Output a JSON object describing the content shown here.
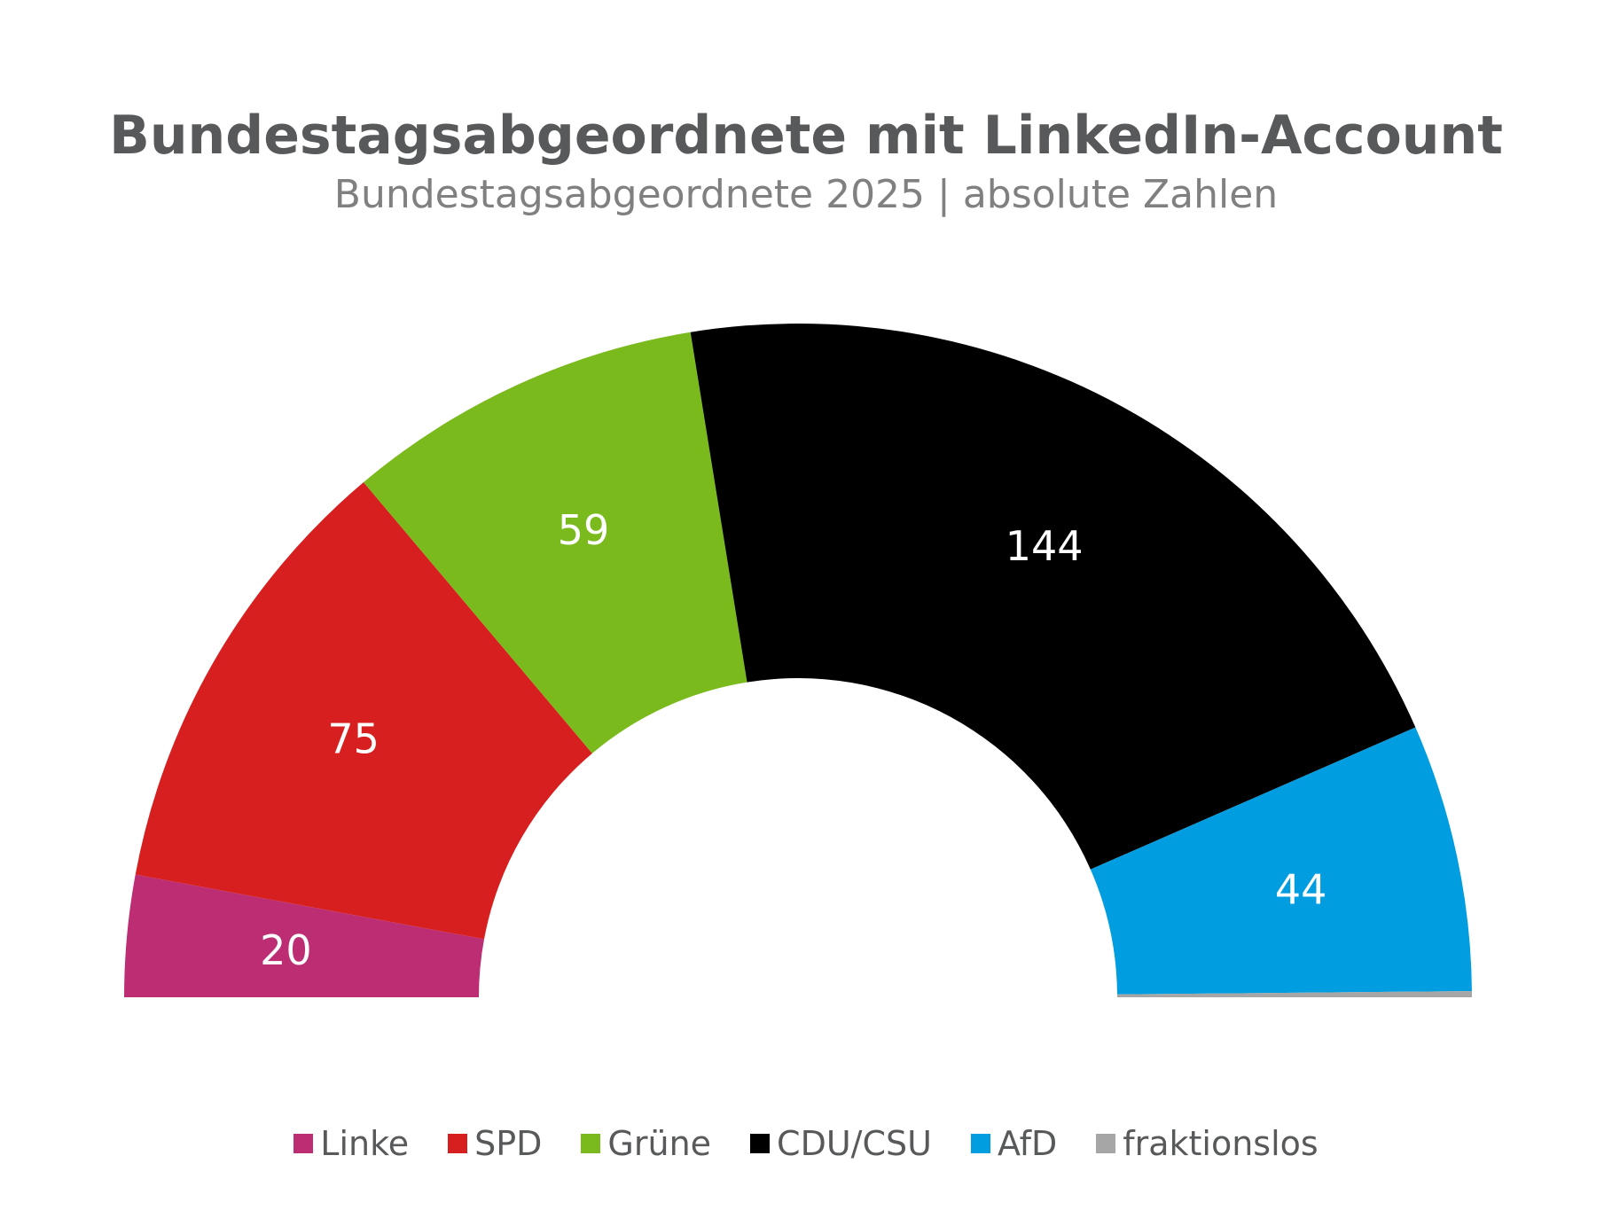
{
  "chart_data": {
    "type": "pie",
    "variant": "half-donut",
    "title": "Bundestagsabgeordnete mit LinkedIn-Account",
    "subtitle": "Bundestagsabgeordnete 2025 | absolute Zahlen",
    "categories": [
      "Linke",
      "SPD",
      "Grüne",
      "CDU/CSU",
      "AfD",
      "fraktionslos"
    ],
    "values": [
      20,
      75,
      59,
      144,
      44,
      1
    ],
    "labels": [
      "20",
      "75",
      "59",
      "144",
      "44",
      ""
    ],
    "colors": [
      "#bd2d74",
      "#d71f1f",
      "#7aba1d",
      "#000000",
      "#009ee0",
      "#a6a6a6"
    ],
    "label_color": "#ffffff",
    "legend_position": "bottom"
  }
}
